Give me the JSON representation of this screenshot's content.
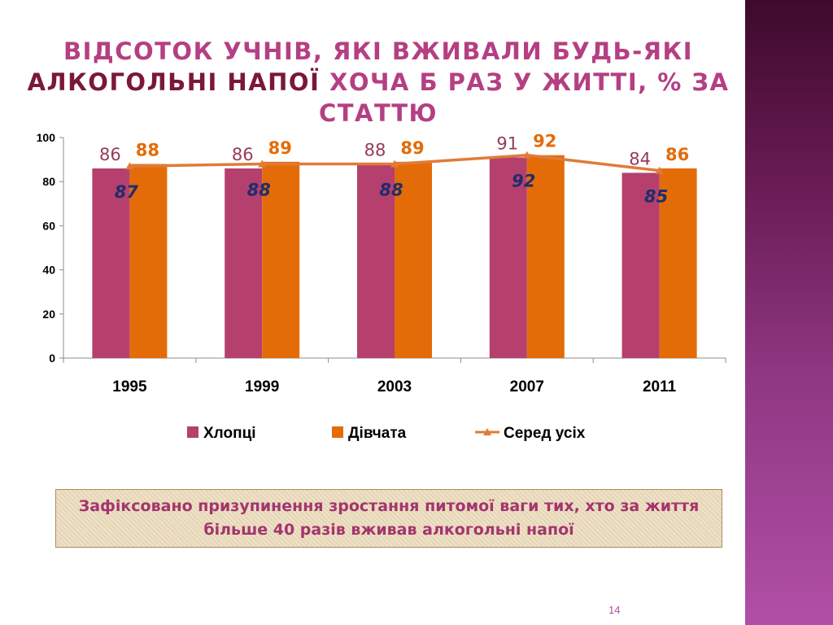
{
  "slide": {
    "title_line1": "ВІДСОТОК УЧНІВ, ЯКІ ВЖИВАЛИ БУДЬ-ЯКІ",
    "title_highlight": "АЛКОГОЛЬНІ НАПОЇ",
    "title_rest": " ХОЧА Б РАЗ У ЖИТТІ, % ЗА СТАТТЮ",
    "note": "Зафіксовано призупинення зростання питомої ваги тих, хто за життя більше 40 разів вживав алкогольні напої",
    "page_number": "14"
  },
  "colors": {
    "boys": "#b5406e",
    "girls": "#e36c09",
    "average": "#e07b39",
    "boys_label": "#953a5e",
    "girls_label": "#e36c09",
    "avg_label": "#1f2d6b"
  },
  "chart_data": {
    "type": "bar",
    "categories": [
      "1995",
      "1999",
      "2003",
      "2007",
      "2011"
    ],
    "series": [
      {
        "name": "Хлопці",
        "kind": "bar",
        "values": [
          86,
          86,
          88,
          91,
          84
        ]
      },
      {
        "name": "Дівчата",
        "kind": "bar",
        "values": [
          88,
          89,
          89,
          92,
          86
        ]
      },
      {
        "name": "Серед усіх",
        "kind": "line",
        "values": [
          87,
          88,
          88,
          92,
          85
        ]
      }
    ],
    "ylim": [
      0,
      100
    ],
    "yticks": [
      "0",
      "20",
      "40",
      "60",
      "80",
      "100"
    ],
    "legend": "bottom",
    "grid": false
  }
}
